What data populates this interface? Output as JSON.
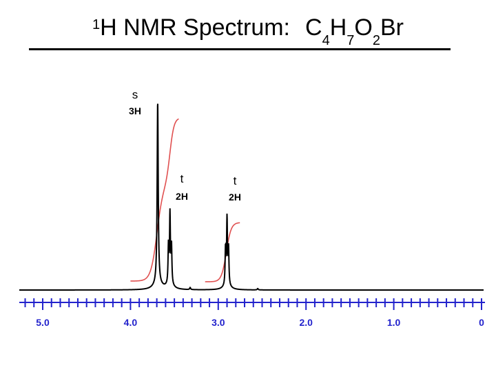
{
  "title": {
    "prefix_sup": "1",
    "text": "H NMR Spectrum:",
    "formula": [
      {
        "el": "C",
        "n": "4"
      },
      {
        "el": "H",
        "n": "7"
      },
      {
        "el": "O",
        "n": "2"
      },
      {
        "el": "Br",
        "n": ""
      }
    ]
  },
  "chart_data": {
    "type": "line",
    "title": "1H NMR Spectrum: C4H7O2Br",
    "xlabel": "",
    "ylabel": "",
    "x_axis_reversed": true,
    "xlim": [
      5.2,
      0
    ],
    "tick_labels": [
      "5.0",
      "4.0",
      "3.0",
      "2.0",
      "1.0",
      "0"
    ],
    "tick_values": [
      5.0,
      4.0,
      3.0,
      2.0,
      1.0,
      0.0
    ],
    "minor_tick_step": 0.1,
    "peaks": [
      {
        "shift_ppm": 3.69,
        "multiplicity": "s",
        "integration": "3H",
        "relative_height": 1.0
      },
      {
        "shift_ppm": 3.55,
        "multiplicity": "t",
        "integration": "2H",
        "relative_height": 0.38
      },
      {
        "shift_ppm": 2.9,
        "multiplicity": "t",
        "integration": "2H",
        "relative_height": 0.36
      }
    ],
    "integration_curves": [
      {
        "from_ppm": 4.0,
        "to_ppm": 3.45,
        "steps": [
          0.6,
          0.4
        ],
        "relative_step_height": [
          0.0,
          0.59,
          1.0
        ]
      },
      {
        "from_ppm": 3.15,
        "to_ppm": 2.75,
        "relative_step_height": [
          0.0,
          0.4
        ]
      }
    ],
    "colors": {
      "spectrum": "#000000",
      "integral": "#e05050",
      "axis": "#2222cc"
    },
    "grid": false,
    "legend": "none"
  }
}
